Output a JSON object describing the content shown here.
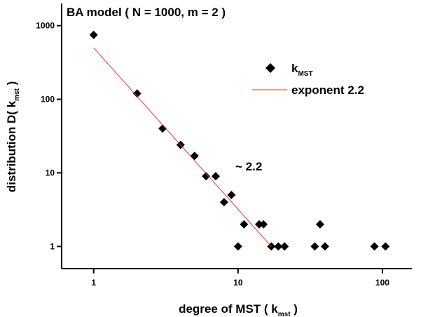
{
  "chart_data": {
    "type": "scatter",
    "title": "BA model ( N = 1000, m = 2 )",
    "x_label": {
      "text": "degree of MST ( k",
      "sub": "mst",
      "tail": " )"
    },
    "y_label": {
      "text": "distribution  D( k",
      "sub": "mst",
      "tail": " )"
    },
    "annotation": "~ 2.2",
    "log_x": true,
    "log_y": true,
    "xlim": [
      0.6,
      160
    ],
    "ylim": [
      0.5,
      2000
    ],
    "xticks": [
      1,
      10,
      100
    ],
    "yticks": [
      1,
      10,
      100,
      1000
    ],
    "series": [
      {
        "name": "k",
        "name_sub": "MST",
        "color": "#000000",
        "marker": "diamond",
        "x": [
          1,
          2,
          3,
          4,
          5,
          6,
          7,
          8,
          9,
          10,
          11,
          14,
          15,
          17,
          19,
          21,
          34,
          37,
          40,
          88,
          105
        ],
        "values": [
          750,
          120,
          40,
          24,
          17,
          9,
          9,
          4,
          5,
          1,
          2,
          2,
          2,
          1,
          1,
          1,
          1,
          2,
          1,
          1,
          1
        ]
      },
      {
        "name": "exponent 2.2",
        "color": "#e8392e",
        "marker": "line",
        "x": [
          1,
          17
        ],
        "values": [
          500,
          1
        ]
      }
    ]
  }
}
